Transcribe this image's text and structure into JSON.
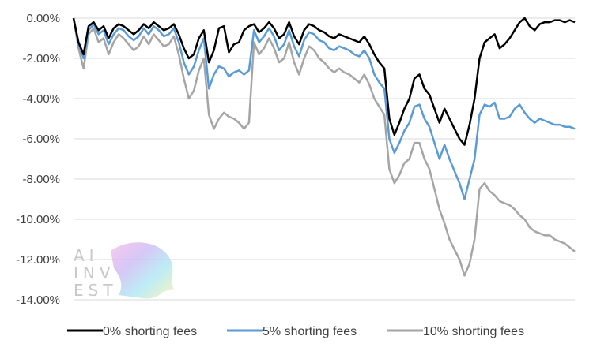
{
  "chart_data": {
    "type": "line",
    "title": "",
    "xlabel": "",
    "ylabel": "",
    "ylim": [
      -0.14,
      0.0
    ],
    "ytick_labels": [
      "0.00%",
      "-2.00%",
      "-4.00%",
      "-6.00%",
      "-8.00%",
      "-10.00%",
      "-12.00%",
      "-14.00%"
    ],
    "grid": "horizontal",
    "legend_position": "bottom",
    "x": [
      0,
      0.01,
      0.02,
      0.03,
      0.04,
      0.05,
      0.06,
      0.07,
      0.08,
      0.09,
      0.1,
      0.11,
      0.12,
      0.13,
      0.14,
      0.15,
      0.16,
      0.17,
      0.18,
      0.19,
      0.2,
      0.21,
      0.22,
      0.23,
      0.24,
      0.25,
      0.26,
      0.27,
      0.28,
      0.29,
      0.3,
      0.31,
      0.32,
      0.33,
      0.34,
      0.35,
      0.36,
      0.37,
      0.38,
      0.39,
      0.4,
      0.41,
      0.42,
      0.43,
      0.44,
      0.45,
      0.46,
      0.47,
      0.48,
      0.49,
      0.5,
      0.51,
      0.52,
      0.53,
      0.54,
      0.55,
      0.56,
      0.57,
      0.58,
      0.59,
      0.6,
      0.61,
      0.62,
      0.63,
      0.64,
      0.65,
      0.66,
      0.67,
      0.68,
      0.69,
      0.7,
      0.71,
      0.72,
      0.73,
      0.74,
      0.75,
      0.76,
      0.77,
      0.78,
      0.79,
      0.8,
      0.81,
      0.82,
      0.83,
      0.84,
      0.85,
      0.86,
      0.87,
      0.88,
      0.89,
      0.9,
      0.91,
      0.92,
      0.93,
      0.94,
      0.95,
      0.96,
      0.97,
      0.98,
      0.99,
      1.0
    ],
    "series": [
      {
        "name": "0% shorting fees",
        "color": "#000000",
        "values": [
          0.0,
          -0.012,
          -0.018,
          -0.004,
          -0.002,
          -0.006,
          -0.004,
          -0.01,
          -0.005,
          -0.003,
          -0.004,
          -0.006,
          -0.008,
          -0.006,
          -0.003,
          -0.005,
          -0.002,
          -0.004,
          -0.006,
          -0.005,
          -0.003,
          -0.008,
          -0.015,
          -0.02,
          -0.018,
          -0.01,
          -0.006,
          -0.022,
          -0.016,
          -0.005,
          -0.004,
          -0.017,
          -0.013,
          -0.012,
          -0.006,
          -0.004,
          -0.003,
          -0.007,
          -0.005,
          -0.002,
          -0.005,
          -0.01,
          -0.008,
          -0.002,
          -0.009,
          -0.013,
          -0.006,
          -0.003,
          -0.004,
          -0.006,
          -0.007,
          -0.009,
          -0.01,
          -0.008,
          -0.009,
          -0.01,
          -0.011,
          -0.012,
          -0.009,
          -0.013,
          -0.018,
          -0.022,
          -0.025,
          -0.05,
          -0.058,
          -0.052,
          -0.045,
          -0.04,
          -0.03,
          -0.028,
          -0.035,
          -0.038,
          -0.045,
          -0.052,
          -0.045,
          -0.05,
          -0.055,
          -0.06,
          -0.063,
          -0.053,
          -0.04,
          -0.02,
          -0.012,
          -0.01,
          -0.008,
          -0.015,
          -0.013,
          -0.01,
          -0.006,
          -0.002,
          0.0,
          -0.004,
          -0.006,
          -0.003,
          -0.002,
          -0.002,
          -0.001,
          -0.001,
          -0.002,
          -0.001,
          -0.002
        ]
      },
      {
        "name": "5% shorting fees",
        "color": "#5b9bd5",
        "values": [
          0.0,
          -0.013,
          -0.02,
          -0.006,
          -0.003,
          -0.008,
          -0.006,
          -0.013,
          -0.008,
          -0.005,
          -0.006,
          -0.009,
          -0.011,
          -0.009,
          -0.005,
          -0.008,
          -0.004,
          -0.006,
          -0.009,
          -0.008,
          -0.005,
          -0.012,
          -0.022,
          -0.028,
          -0.024,
          -0.016,
          -0.01,
          -0.035,
          -0.028,
          -0.024,
          -0.025,
          -0.029,
          -0.027,
          -0.026,
          -0.028,
          -0.026,
          -0.006,
          -0.012,
          -0.009,
          -0.005,
          -0.009,
          -0.016,
          -0.013,
          -0.006,
          -0.014,
          -0.019,
          -0.011,
          -0.007,
          -0.008,
          -0.011,
          -0.012,
          -0.015,
          -0.016,
          -0.014,
          -0.015,
          -0.016,
          -0.018,
          -0.019,
          -0.016,
          -0.02,
          -0.028,
          -0.032,
          -0.035,
          -0.06,
          -0.067,
          -0.062,
          -0.056,
          -0.052,
          -0.044,
          -0.043,
          -0.05,
          -0.054,
          -0.062,
          -0.07,
          -0.063,
          -0.07,
          -0.076,
          -0.082,
          -0.09,
          -0.08,
          -0.07,
          -0.048,
          -0.043,
          -0.044,
          -0.042,
          -0.05,
          -0.05,
          -0.049,
          -0.045,
          -0.043,
          -0.047,
          -0.05,
          -0.052,
          -0.05,
          -0.051,
          -0.052,
          -0.053,
          -0.053,
          -0.054,
          -0.054,
          -0.055
        ]
      },
      {
        "name": "10% shorting fees",
        "color": "#a5a5a5",
        "values": [
          0.0,
          -0.015,
          -0.025,
          -0.008,
          -0.005,
          -0.012,
          -0.01,
          -0.018,
          -0.012,
          -0.008,
          -0.01,
          -0.013,
          -0.016,
          -0.014,
          -0.009,
          -0.013,
          -0.008,
          -0.011,
          -0.014,
          -0.013,
          -0.009,
          -0.018,
          -0.03,
          -0.04,
          -0.036,
          -0.026,
          -0.02,
          -0.048,
          -0.055,
          -0.05,
          -0.047,
          -0.049,
          -0.05,
          -0.052,
          -0.055,
          -0.052,
          -0.012,
          -0.018,
          -0.015,
          -0.01,
          -0.015,
          -0.022,
          -0.02,
          -0.012,
          -0.022,
          -0.028,
          -0.02,
          -0.014,
          -0.016,
          -0.02,
          -0.022,
          -0.025,
          -0.027,
          -0.025,
          -0.027,
          -0.028,
          -0.03,
          -0.032,
          -0.028,
          -0.033,
          -0.04,
          -0.044,
          -0.048,
          -0.075,
          -0.082,
          -0.078,
          -0.072,
          -0.07,
          -0.062,
          -0.062,
          -0.07,
          -0.075,
          -0.085,
          -0.095,
          -0.102,
          -0.11,
          -0.115,
          -0.12,
          -0.128,
          -0.122,
          -0.11,
          -0.085,
          -0.082,
          -0.086,
          -0.088,
          -0.091,
          -0.092,
          -0.093,
          -0.095,
          -0.098,
          -0.1,
          -0.104,
          -0.106,
          -0.107,
          -0.108,
          -0.108,
          -0.11,
          -0.111,
          -0.112,
          -0.114,
          -0.116
        ]
      }
    ]
  },
  "watermark": {
    "lines": [
      "AI",
      "INV",
      "EST"
    ]
  }
}
